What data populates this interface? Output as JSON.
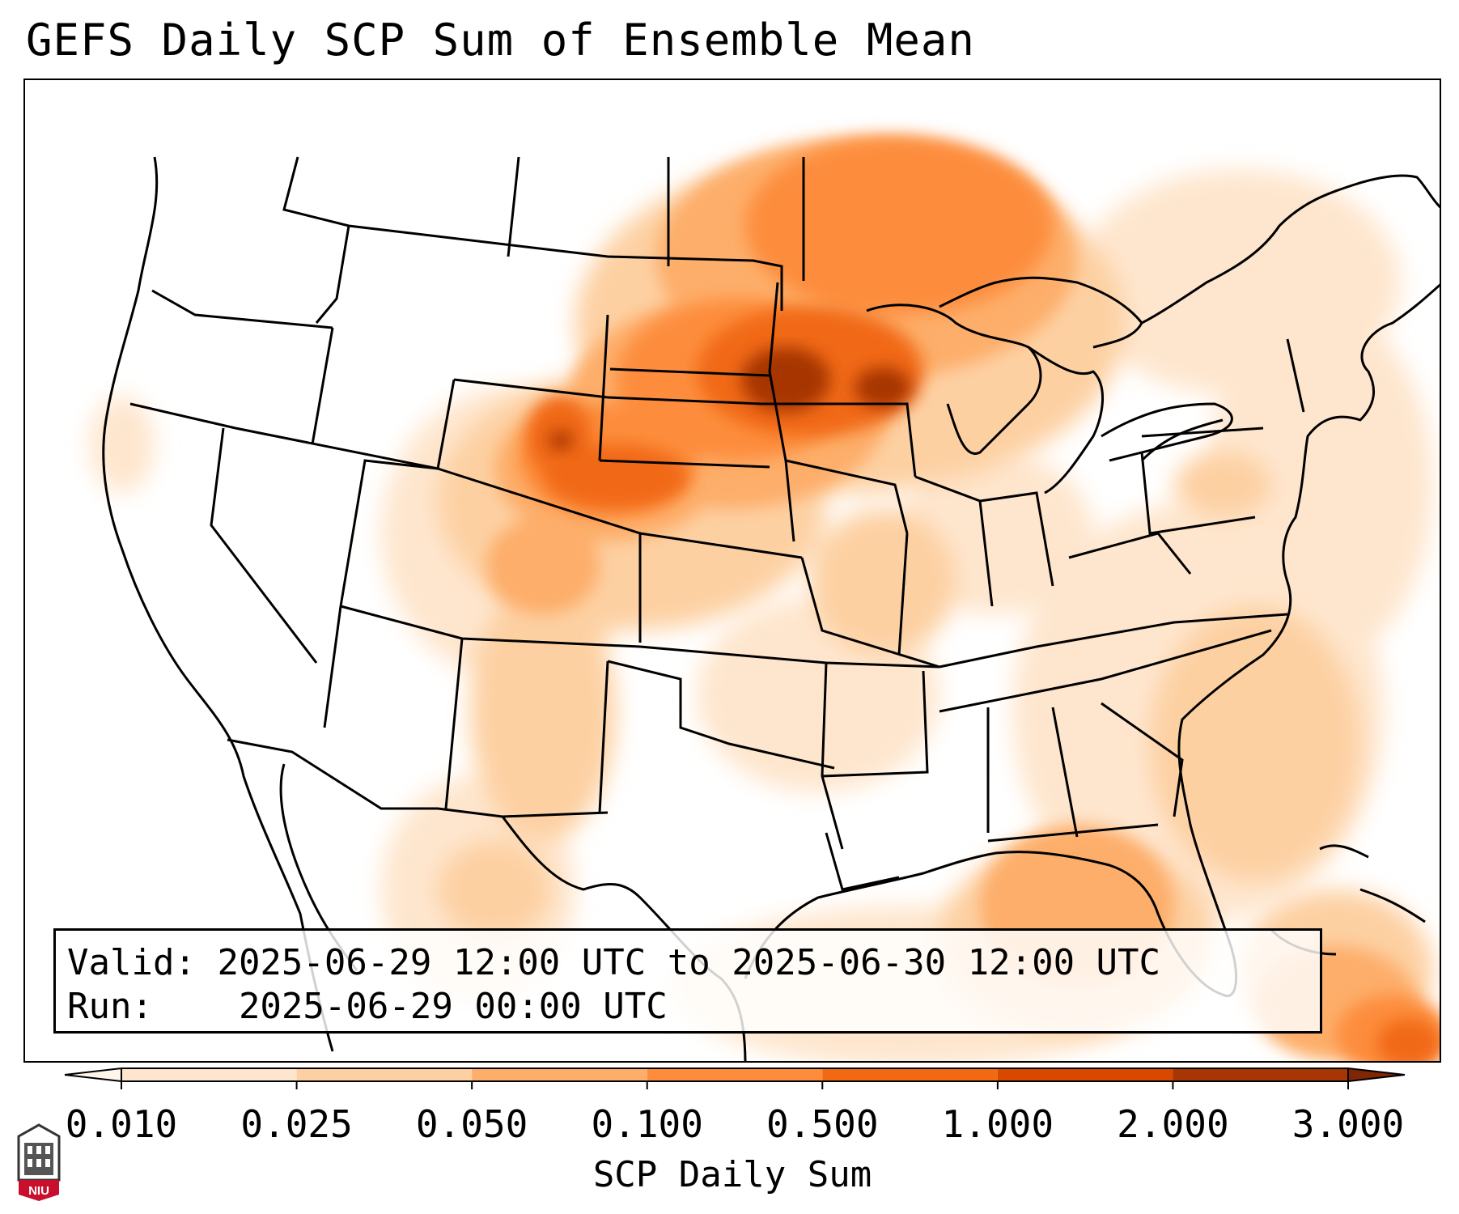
{
  "title": "GEFS Daily SCP Sum of Ensemble Mean",
  "valid_box": {
    "valid_label": "Valid:",
    "valid_text": "2025-06-29 12:00 UTC to 2025-06-30 12:00 UTC",
    "run_label": "Run:",
    "run_text": "2025-06-29 00:00 UTC"
  },
  "colorbar": {
    "label": "SCP Daily Sum",
    "ticks": [
      "0.010",
      "0.025",
      "0.050",
      "0.100",
      "0.500",
      "1.000",
      "2.000",
      "3.000"
    ],
    "colors": [
      "#fff5eb",
      "#fee6ce",
      "#fdd0a2",
      "#fdae6b",
      "#fd8d3c",
      "#f16913",
      "#d94801",
      "#a63603",
      "#7f2704"
    ],
    "extend": "both"
  },
  "logo": {
    "text": "NIU"
  }
}
